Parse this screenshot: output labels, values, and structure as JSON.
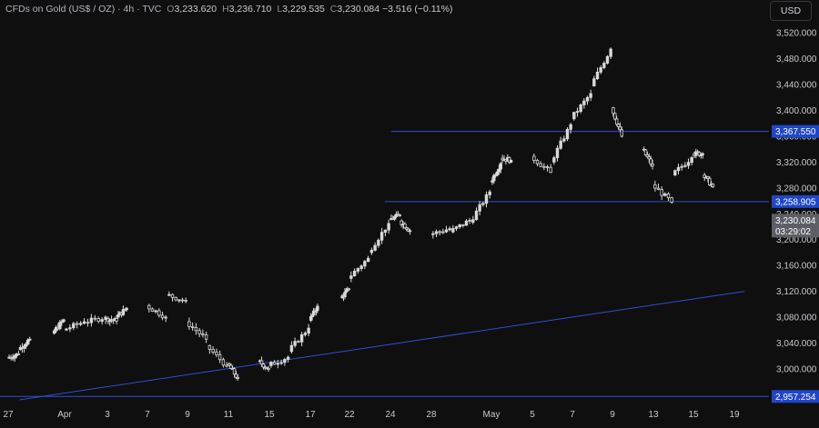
{
  "header": {
    "symbol": "CFDs on Gold (US$ / OZ) · 4h · TVC",
    "o_label": "O",
    "o_value": "3,233.620",
    "h_label": "H",
    "h_value": "3,236.710",
    "l_label": "L",
    "l_value": "3,229.535",
    "c_label": "C",
    "c_value": "3,230.084",
    "change": "−3.516 (−0.11%)"
  },
  "currency_button": "USD",
  "colors": {
    "background": "#0f0f0f",
    "candle": "#d8d8d8",
    "line": "#2f4fd0",
    "tag": "#2046c8",
    "price_tag": "#5d5f66"
  },
  "chart_data": {
    "type": "candlestick",
    "yticks": [
      "3,520.000",
      "3,480.000",
      "3,440.000",
      "3,400.000",
      "3,360.000",
      "3,320.000",
      "3,280.000",
      "3,240.000",
      "3,200.000",
      "3,160.000",
      "3,120.000",
      "3,080.000",
      "3,040.000",
      "3,000.000"
    ],
    "ytick_values": [
      3520,
      3480,
      3440,
      3400,
      3360,
      3320,
      3280,
      3240,
      3200,
      3160,
      3120,
      3080,
      3040,
      3000
    ],
    "ylim": [
      2945,
      3540
    ],
    "x_labels": [
      "27",
      "Apr",
      "3",
      "7",
      "9",
      "11",
      "15",
      "17",
      "22",
      "24",
      "28",
      "May",
      "5",
      "7",
      "9",
      "13",
      "15",
      "19"
    ],
    "x_label_dates": [
      "2025-03-27",
      "2025-04-01",
      "2025-04-03",
      "2025-04-07",
      "2025-04-09",
      "2025-04-11",
      "2025-04-15",
      "2025-04-17",
      "2025-04-22",
      "2025-04-24",
      "2025-04-28",
      "2025-05-01",
      "2025-05-05",
      "2025-05-07",
      "2025-05-09",
      "2025-05-13",
      "2025-05-15",
      "2025-05-19"
    ],
    "waypoints": [
      [
        3017,
        3023
      ],
      [
        3030,
        3046
      ],
      [
        3055,
        3076
      ],
      [
        3060,
        3073
      ],
      [
        3072,
        3080
      ],
      [
        3078,
        3074
      ],
      [
        3080,
        3094
      ],
      [
        3098,
        3080
      ],
      [
        3115,
        3105
      ],
      [
        3073,
        3046
      ],
      [
        3036,
        3004
      ],
      [
        3008,
        2985
      ],
      [
        3012,
        3000
      ],
      [
        3005,
        3018
      ],
      [
        3027,
        3063
      ],
      [
        3075,
        3097
      ],
      [
        3110,
        3123
      ],
      [
        3140,
        3171
      ],
      [
        3180,
        3225
      ],
      [
        3231,
        3238
      ],
      [
        3229,
        3214
      ],
      [
        3208,
        3217
      ],
      [
        3212,
        3230
      ],
      [
        3227,
        3274
      ],
      [
        3289,
        3318
      ],
      [
        3326,
        3323
      ],
      [
        3329,
        3304
      ],
      [
        3320,
        3378
      ],
      [
        3387,
        3426
      ],
      [
        3438,
        3495
      ],
      [
        3404,
        3360
      ],
      [
        3340,
        3314
      ],
      [
        3285,
        3258
      ],
      [
        3300,
        3327
      ],
      [
        3333,
        3333
      ],
      [
        3300,
        3282
      ],
      [
        3276,
        3271
      ],
      [
        3276,
        3300
      ],
      [
        3308,
        3311
      ],
      [
        3308,
        3295
      ],
      [
        3292,
        3278
      ],
      [
        3265,
        3240
      ],
      [
        3230,
        3218
      ],
      [
        3232,
        3240
      ],
      [
        3247,
        3261
      ],
      [
        3257,
        3262
      ],
      [
        3275,
        3300
      ],
      [
        3320,
        3375
      ],
      [
        3397,
        3420
      ],
      [
        3414,
        3387
      ],
      [
        3380,
        3372
      ],
      [
        3355,
        3330
      ],
      [
        3320,
        3305
      ],
      [
        3318,
        3340
      ],
      [
        3312,
        3270
      ],
      [
        3250,
        3240
      ],
      [
        3227,
        3230
      ],
      [
        3249,
        3256
      ],
      [
        3243,
        3230
      ]
    ],
    "hlines": [
      {
        "label": "3,367.550",
        "value": 3367.55
      },
      {
        "label": "3,258.905",
        "value": 3258.905
      },
      {
        "label": "2,957.254",
        "value": 2957.254
      }
    ],
    "current_price": {
      "label": "3,230.084",
      "value": 3230.084,
      "countdown": "03:29:02"
    },
    "trendline": {
      "from": [
        "2025-03-28",
        2952
      ],
      "to": [
        "2025-05-20",
        3120
      ]
    }
  }
}
